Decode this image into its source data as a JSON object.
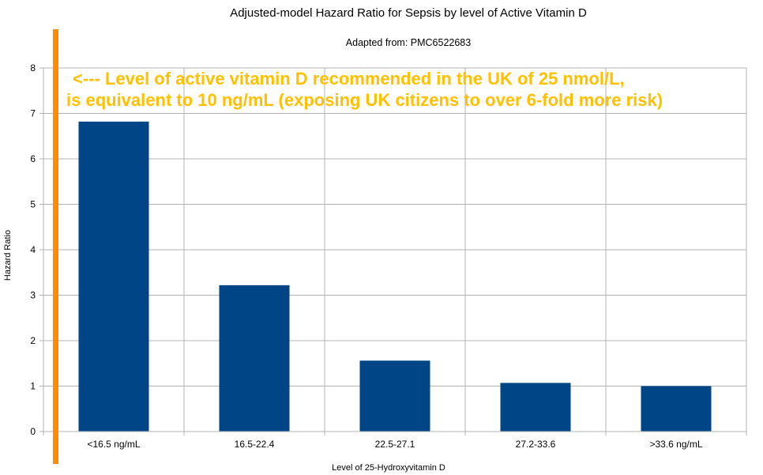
{
  "chart_data": {
    "type": "bar",
    "title": "Adjusted-model Hazard Ratio for Sepsis by level of Active Vitamin D",
    "subtitle": "Adapted from: PMC6522683",
    "xlabel": "Level of 25-Hydroxyvitamin D",
    "ylabel": "Hazard Ratio",
    "categories": [
      "<16.5 ng/mL",
      "16.5-22.4",
      "22.5-27.1",
      "27.2-33.6",
      ">33.6 ng/mL"
    ],
    "values": [
      6.82,
      3.22,
      1.56,
      1.07,
      1.0
    ],
    "ylim": [
      0,
      8
    ],
    "yticks": [
      0,
      1,
      2,
      3,
      4,
      5,
      6,
      7,
      8
    ],
    "grid": true,
    "legend": "none",
    "bar_color": "#004586",
    "annotation": {
      "line1": "<--- Level of active vitamin D recommended in the UK of 25 nmol/L,",
      "line2": "is equivalent to 10 ng/mL (exposing UK citizens to over 6-fold more risk)",
      "color": "#ffc000",
      "line_color": "#ff8c00"
    }
  }
}
